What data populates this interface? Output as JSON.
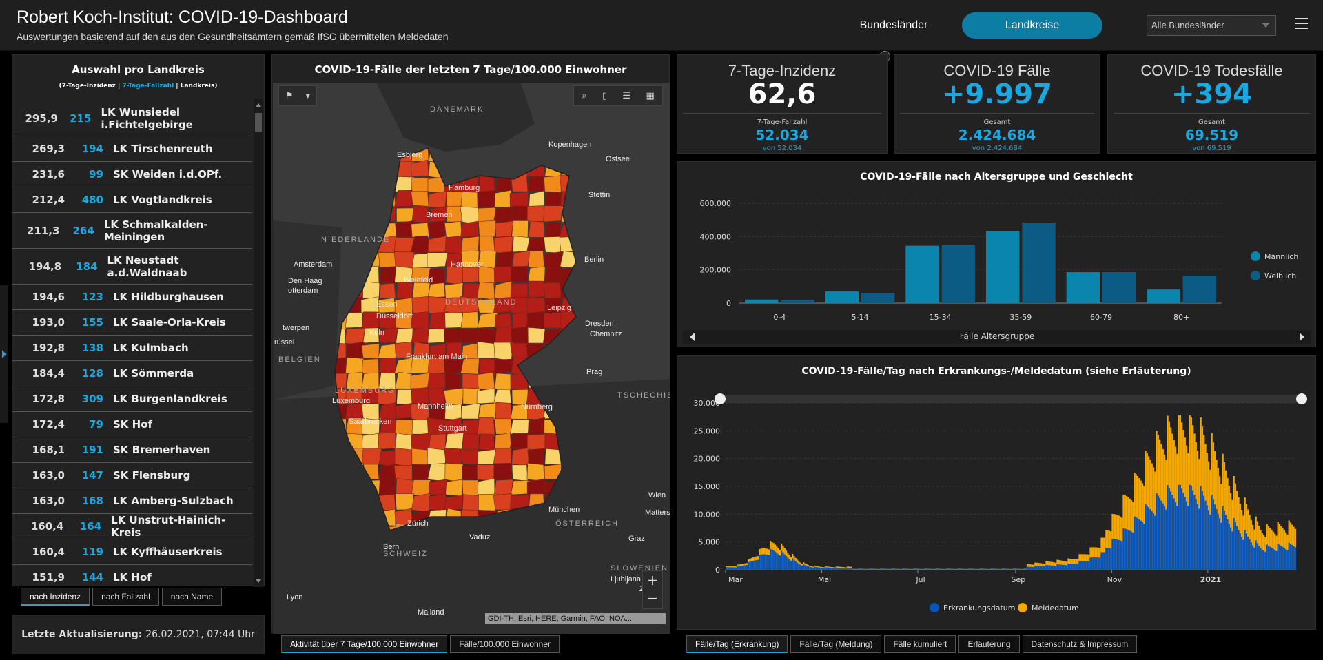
{
  "header": {
    "title": "Robert Koch-Institut: COVID-19-Dashboard",
    "subtitle": "Auswertungen basierend auf den aus den Gesundheitsämtern gemäß IfSG übermittelten Meldedaten",
    "btn_states": "Bundesländer",
    "btn_districts": "Landkreise",
    "select_value": "Alle Bundesländer"
  },
  "left": {
    "title": "Auswahl pro Landkreis",
    "sub_a": "(7-Tage-Inzidenz | ",
    "sub_b": "7-Tage-Fallzahl",
    "sub_c": " | Landkreis)",
    "rows": [
      {
        "inz": "295,9",
        "fz": "215",
        "name": "LK Wunsiedel i.Fichtelgebirge"
      },
      {
        "inz": "269,3",
        "fz": "194",
        "name": "LK Tirschenreuth"
      },
      {
        "inz": "231,6",
        "fz": "99",
        "name": "SK Weiden i.d.OPf."
      },
      {
        "inz": "212,4",
        "fz": "480",
        "name": "LK Vogtlandkreis"
      },
      {
        "inz": "211,3",
        "fz": "264",
        "name": "LK Schmalkalden-Meiningen"
      },
      {
        "inz": "194,8",
        "fz": "184",
        "name": "LK Neustadt a.d.Waldnaab"
      },
      {
        "inz": "194,6",
        "fz": "123",
        "name": "LK Hildburghausen"
      },
      {
        "inz": "193,0",
        "fz": "155",
        "name": "LK Saale-Orla-Kreis"
      },
      {
        "inz": "192,8",
        "fz": "138",
        "name": "LK Kulmbach"
      },
      {
        "inz": "184,4",
        "fz": "128",
        "name": "LK Sömmerda"
      },
      {
        "inz": "172,8",
        "fz": "309",
        "name": "LK Burgenlandkreis"
      },
      {
        "inz": "172,4",
        "fz": "79",
        "name": "SK Hof"
      },
      {
        "inz": "168,1",
        "fz": "191",
        "name": "SK Bremerhaven"
      },
      {
        "inz": "163,0",
        "fz": "147",
        "name": "SK Flensburg"
      },
      {
        "inz": "163,0",
        "fz": "168",
        "name": "LK Amberg-Sulzbach"
      },
      {
        "inz": "160,4",
        "fz": "164",
        "name": "LK Unstrut-Hainich-Kreis"
      },
      {
        "inz": "160,4",
        "fz": "119",
        "name": "LK Kyffhäuserkreis"
      },
      {
        "inz": "151,9",
        "fz": "144",
        "name": "LK Hof"
      }
    ],
    "tabs": [
      "nach Inzidenz",
      "nach Fallzahl",
      "nach Name"
    ],
    "update_label": "Letzte Aktualisierung:",
    "update_value": "26.02.2021, 07:44 Uhr"
  },
  "map": {
    "title": "COVID-19-Fälle der letzten 7 Tage/100.000 Einwohner",
    "attribution": "GDI-TH, Esri, HERE, Garmin, FAO, NOA...",
    "tabs": [
      "Aktivität über 7 Tage/100.000 Einwohner",
      "Fälle/100.000 Einwohner"
    ],
    "labels": [
      "DÄNEMARK",
      "Kopenhagen",
      "Esbjerg",
      "Ostsee",
      "Hamburg",
      "Stettin",
      "Bremen",
      "NIEDERLANDE",
      "Amsterdam",
      "Hannover",
      "Berlin",
      "Den Haag",
      "otterdam",
      "Bielefeld",
      "DEUTSCHLAND",
      "Essen",
      "Düsseldorf",
      "twerpen",
      "Leipzig",
      "Dresden",
      "Köln",
      "Chemnitz",
      "rüssel",
      "BELGIEN",
      "Frankfurt am Main",
      "Prag",
      "LUXEMBURG",
      "Luxemburg",
      "TSCHECHIEN",
      "Mannheim",
      "Nürnberg",
      "Saarbrücken",
      "Stuttgart",
      "Wien",
      "Mattersbu",
      "München",
      "ÖSTERREICH",
      "Zürich",
      "Vaduz",
      "Graz",
      "Bern",
      "SCHWEIZ",
      "SLOWENIEN",
      "Ljubljana",
      "Zag",
      "Lyon",
      "Mailand"
    ],
    "region_colors": [
      "#f5a623",
      "#ef8a1b",
      "#d9401f",
      "#b51d17",
      "#8a1010",
      "#f7d36a"
    ]
  },
  "kpi": [
    {
      "title": "7-Tage-Inzidenz",
      "value": "62,6",
      "label": "7-Tage-Fallzahl",
      "value2": "52.034",
      "sub": "von 52.034",
      "color": "#ffffff"
    },
    {
      "title": "COVID-19 Fälle",
      "value": "+9.997",
      "label": "Gesamt",
      "value2": "2.424.684",
      "sub": "von 2.424.684",
      "color": "#1aa8e0"
    },
    {
      "title": "COVID-19 Todesfälle",
      "value": "+394",
      "label": "Gesamt",
      "value2": "69.519",
      "sub": "von 69.519",
      "color": "#1aa8e0"
    }
  ],
  "chart_data": [
    {
      "type": "bar",
      "title": "COVID-19-Fälle nach Altersgruppe und Geschlecht",
      "categories": [
        "0-4",
        "5-14",
        "15-34",
        "35-59",
        "60-79",
        "80+"
      ],
      "series": [
        {
          "name": "Männlich",
          "color": "#0a86ad",
          "values": [
            22000,
            70000,
            345000,
            432000,
            186000,
            82000
          ]
        },
        {
          "name": "Weiblich",
          "color": "#0b5b85",
          "values": [
            20000,
            62000,
            350000,
            484000,
            186000,
            165000
          ]
        }
      ],
      "yticks": [
        "0",
        "200.000",
        "400.000",
        "600.000"
      ],
      "ylim": [
        0,
        600000
      ],
      "xlabel": "Fälle Altersgruppe"
    },
    {
      "type": "bar",
      "stacked": true,
      "title_a": "COVID-19-Fälle/Tag nach ",
      "title_u": "Erkrankungs-/",
      "title_b": "Meldedatum (siehe Erläuterung)",
      "x_start": "2020-03-01",
      "x_ticks": [
        "Mär",
        "Mai",
        "Jul",
        "Sep",
        "Nov",
        "2021"
      ],
      "yticks": [
        "0",
        "5.000",
        "10.000",
        "15.000",
        "20.000",
        "25.000",
        "30.000"
      ],
      "ylim": [
        0,
        30000
      ],
      "series": [
        {
          "name": "Erkrankungsdatum",
          "color": "#0a54b8"
        },
        {
          "name": "Meldedatum",
          "color": "#f5a800"
        }
      ],
      "tabs": [
        "Fälle/Tag (Erkrankung)",
        "Fälle/Tag (Meldung)",
        "Fälle kumuliert",
        "Erläuterung",
        "Datenschutz & Impressum"
      ]
    }
  ]
}
